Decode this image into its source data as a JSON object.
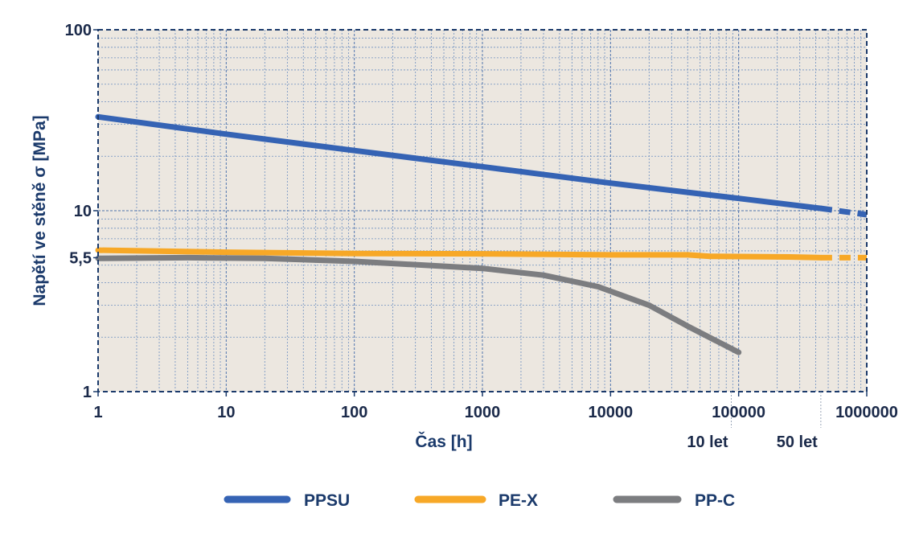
{
  "chart_data": {
    "type": "line",
    "x_scale": "log",
    "y_scale": "log",
    "xlim": [
      1,
      1000000
    ],
    "ylim": [
      1,
      100
    ],
    "xlabel": "Čas [h]",
    "ylabel": "Napětí ve stěně σ [MPa]",
    "x_ticks": [
      "1",
      "10",
      "100",
      "1000",
      "10000",
      "100000",
      "1000000"
    ],
    "y_ticks": [
      "1",
      "5,5",
      "10",
      "100"
    ],
    "y_tick_values": [
      1,
      5.5,
      10,
      100
    ],
    "grid": true,
    "legend_position": "bottom",
    "annotations": [
      {
        "label": "10 let",
        "x": 87600
      },
      {
        "label": "50 let",
        "x": 438000
      }
    ],
    "colors": {
      "PPSU": "#3563b4",
      "PE-X": "#f7a827",
      "PP-C": "#7c7d80",
      "plot_bg": "#ece7e0",
      "frame": "#1b3a6b"
    },
    "series": [
      {
        "name": "PPSU",
        "points": [
          [
            1,
            33
          ],
          [
            10,
            26.5
          ],
          [
            100,
            21.5
          ],
          [
            1000,
            17.5
          ],
          [
            10000,
            14.2
          ],
          [
            50000,
            12.4
          ],
          [
            100000,
            11.7
          ],
          [
            438000,
            10.3
          ]
        ],
        "extrapolated": [
          [
            438000,
            10.3
          ],
          [
            1000000,
            9.5
          ]
        ]
      },
      {
        "name": "PE-X",
        "points": [
          [
            1,
            6.05
          ],
          [
            10,
            5.9
          ],
          [
            100,
            5.8
          ],
          [
            1000,
            5.78
          ],
          [
            10000,
            5.7
          ],
          [
            40000,
            5.7
          ],
          [
            60000,
            5.6
          ],
          [
            250000,
            5.55
          ],
          [
            438000,
            5.5
          ]
        ],
        "extrapolated": [
          [
            438000,
            5.5
          ],
          [
            1000000,
            5.5
          ]
        ]
      },
      {
        "name": "PP-C",
        "points": [
          [
            1,
            5.45
          ],
          [
            5,
            5.5
          ],
          [
            20,
            5.45
          ],
          [
            100,
            5.25
          ],
          [
            1000,
            4.8
          ],
          [
            3000,
            4.4
          ],
          [
            8000,
            3.8
          ],
          [
            20000,
            3.0
          ],
          [
            40000,
            2.3
          ],
          [
            100000,
            1.65
          ]
        ],
        "extrapolated": []
      }
    ]
  }
}
